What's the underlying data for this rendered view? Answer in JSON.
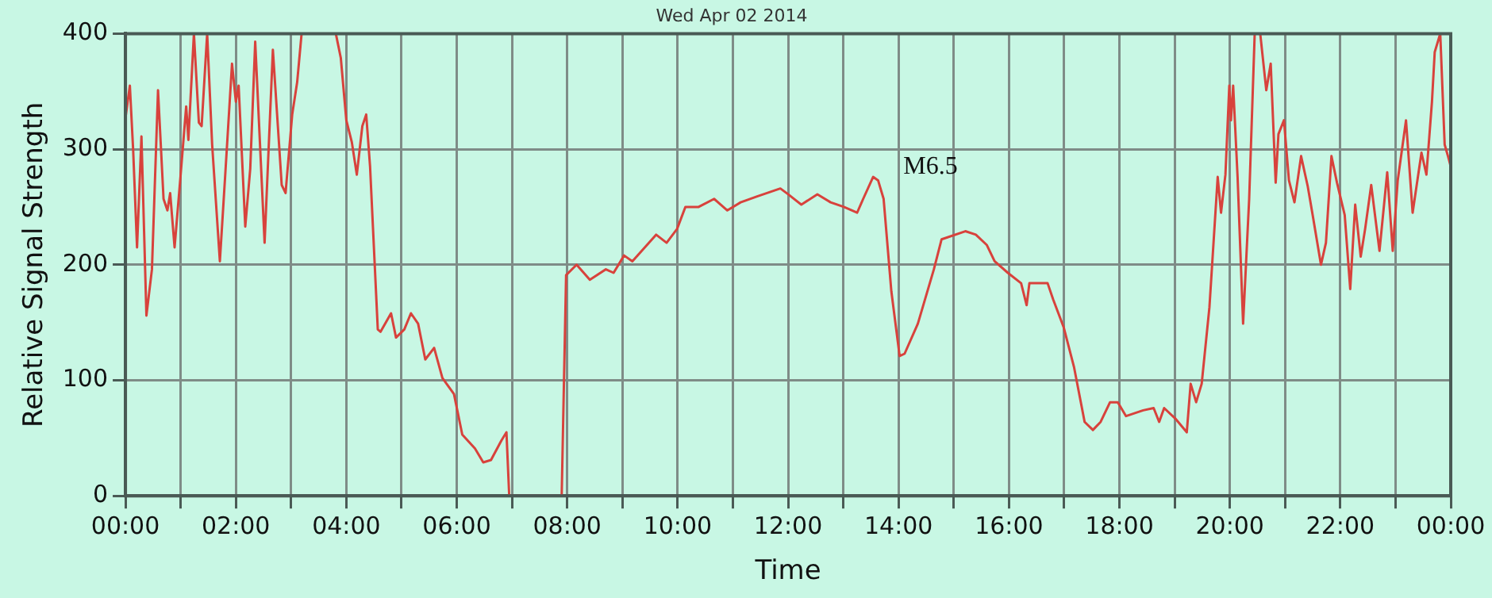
{
  "chart_data": {
    "type": "line",
    "title": "Wed Apr 02 2014",
    "xlabel": "Time",
    "ylabel": "Relative Signal Strength",
    "x": [
      0,
      0.08,
      0.14,
      0.21,
      0.29,
      0.38,
      0.48,
      0.59,
      0.69,
      0.76,
      0.81,
      0.89,
      1.0,
      1.1,
      1.14,
      1.24,
      1.33,
      1.38,
      1.48,
      1.57,
      1.71,
      1.81,
      1.93,
      2.0,
      2.05,
      2.17,
      2.26,
      2.35,
      2.52,
      2.67,
      2.83,
      2.9,
      3.02,
      3.11,
      3.19,
      3.81,
      3.9,
      4.0,
      4.1,
      4.19,
      4.29,
      4.36,
      4.43,
      4.57,
      4.62,
      4.81,
      4.9,
      5.05,
      5.17,
      5.3,
      5.43,
      5.59,
      5.74,
      5.95,
      6.1,
      6.33,
      6.48,
      6.62,
      6.81,
      6.9,
      6.95,
      7.9,
      7.98,
      8.17,
      8.41,
      8.7,
      8.84,
      9.03,
      9.18,
      9.61,
      9.8,
      9.99,
      10.14,
      10.38,
      10.66,
      10.9,
      11.14,
      11.43,
      11.86,
      12.0,
      12.24,
      12.53,
      12.77,
      13.01,
      13.25,
      13.36,
      13.54,
      13.63,
      13.73,
      13.87,
      14.02,
      14.11,
      14.35,
      14.64,
      14.78,
      15.21,
      15.4,
      15.6,
      15.74,
      15.98,
      16.22,
      16.32,
      16.37,
      16.7,
      16.8,
      16.99,
      17.18,
      17.37,
      17.52,
      17.66,
      17.83,
      17.97,
      18.12,
      18.43,
      18.62,
      18.72,
      18.81,
      19.01,
      19.22,
      19.29,
      19.39,
      19.49,
      19.63,
      19.78,
      19.84,
      19.92,
      19.99,
      20.02,
      20.06,
      20.14,
      20.24,
      20.35,
      20.45,
      20.55,
      20.66,
      20.74,
      20.83,
      20.88,
      20.98,
      21.07,
      21.17,
      21.29,
      21.41,
      21.5,
      21.65,
      21.74,
      21.84,
      21.94,
      22.08,
      22.18,
      22.27,
      22.37,
      22.45,
      22.56,
      22.71,
      22.85,
      22.95,
      23.04,
      23.19,
      23.31,
      23.47,
      23.56,
      23.66,
      23.71,
      23.81,
      23.89,
      23.95,
      24
    ],
    "series": [
      {
        "color": "#d8423c",
        "values": [
          327,
          355,
          299,
          215,
          311,
          156,
          196,
          351,
          257,
          247,
          262,
          215,
          278,
          337,
          308,
          400,
          323,
          320,
          400,
          304,
          203,
          280,
          374,
          341,
          355,
          233,
          283,
          393,
          219,
          386,
          269,
          262,
          330,
          358,
          400,
          400,
          379,
          325,
          306,
          278,
          320,
          330,
          285,
          144,
          142,
          158,
          137,
          144,
          158,
          149,
          118,
          128,
          102,
          88,
          53,
          41,
          29,
          31,
          48,
          55,
          0,
          0,
          191,
          200,
          187,
          196,
          193,
          208,
          203,
          226,
          219,
          231,
          250,
          250,
          257,
          247,
          254,
          259,
          266,
          261,
          252,
          261,
          254,
          250,
          245,
          257,
          276,
          273,
          257,
          177,
          121,
          123,
          149,
          196,
          222,
          229,
          226,
          217,
          203,
          193,
          184,
          165,
          184,
          184,
          170,
          146,
          111,
          64,
          57,
          64,
          81,
          81,
          69,
          74,
          76,
          64,
          76,
          67,
          55,
          97,
          81,
          97,
          163,
          276,
          245,
          278,
          355,
          325,
          355,
          276,
          149,
          257,
          400,
          400,
          351,
          374,
          271,
          313,
          325,
          273,
          254,
          294,
          268,
          243,
          200,
          219,
          294,
          271,
          243,
          179,
          252,
          207,
          231,
          269,
          212,
          280,
          212,
          273,
          325,
          245,
          297,
          278,
          341,
          384,
          400,
          304,
          294,
          285
        ]
      }
    ],
    "xlim": [
      0,
      24
    ],
    "xticks": [
      {
        "value": 0,
        "label": "00:00"
      },
      {
        "value": 1,
        "label": null
      },
      {
        "value": 2,
        "label": "02:00"
      },
      {
        "value": 3,
        "label": null
      },
      {
        "value": 4,
        "label": "04:00"
      },
      {
        "value": 5,
        "label": null
      },
      {
        "value": 6,
        "label": "06:00"
      },
      {
        "value": 7,
        "label": null
      },
      {
        "value": 8,
        "label": "08:00"
      },
      {
        "value": 9,
        "label": null
      },
      {
        "value": 10,
        "label": "10:00"
      },
      {
        "value": 11,
        "label": null
      },
      {
        "value": 12,
        "label": "12:00"
      },
      {
        "value": 13,
        "label": null
      },
      {
        "value": 14,
        "label": "14:00"
      },
      {
        "value": 15,
        "label": null
      },
      {
        "value": 16,
        "label": "16:00"
      },
      {
        "value": 17,
        "label": null
      },
      {
        "value": 18,
        "label": "18:00"
      },
      {
        "value": 19,
        "label": null
      },
      {
        "value": 20,
        "label": "20:00"
      },
      {
        "value": 21,
        "label": null
      },
      {
        "value": 22,
        "label": "22:00"
      },
      {
        "value": 23,
        "label": null
      },
      {
        "value": 24,
        "label": "00:00"
      }
    ],
    "ylim": [
      0,
      400
    ],
    "yticks": [
      0,
      100,
      200,
      300,
      400
    ],
    "grid": true,
    "marker": "none",
    "line_style": "solid",
    "annotations": [
      {
        "text": "M6.5",
        "x": 13.54,
        "y": 276
      }
    ]
  }
}
